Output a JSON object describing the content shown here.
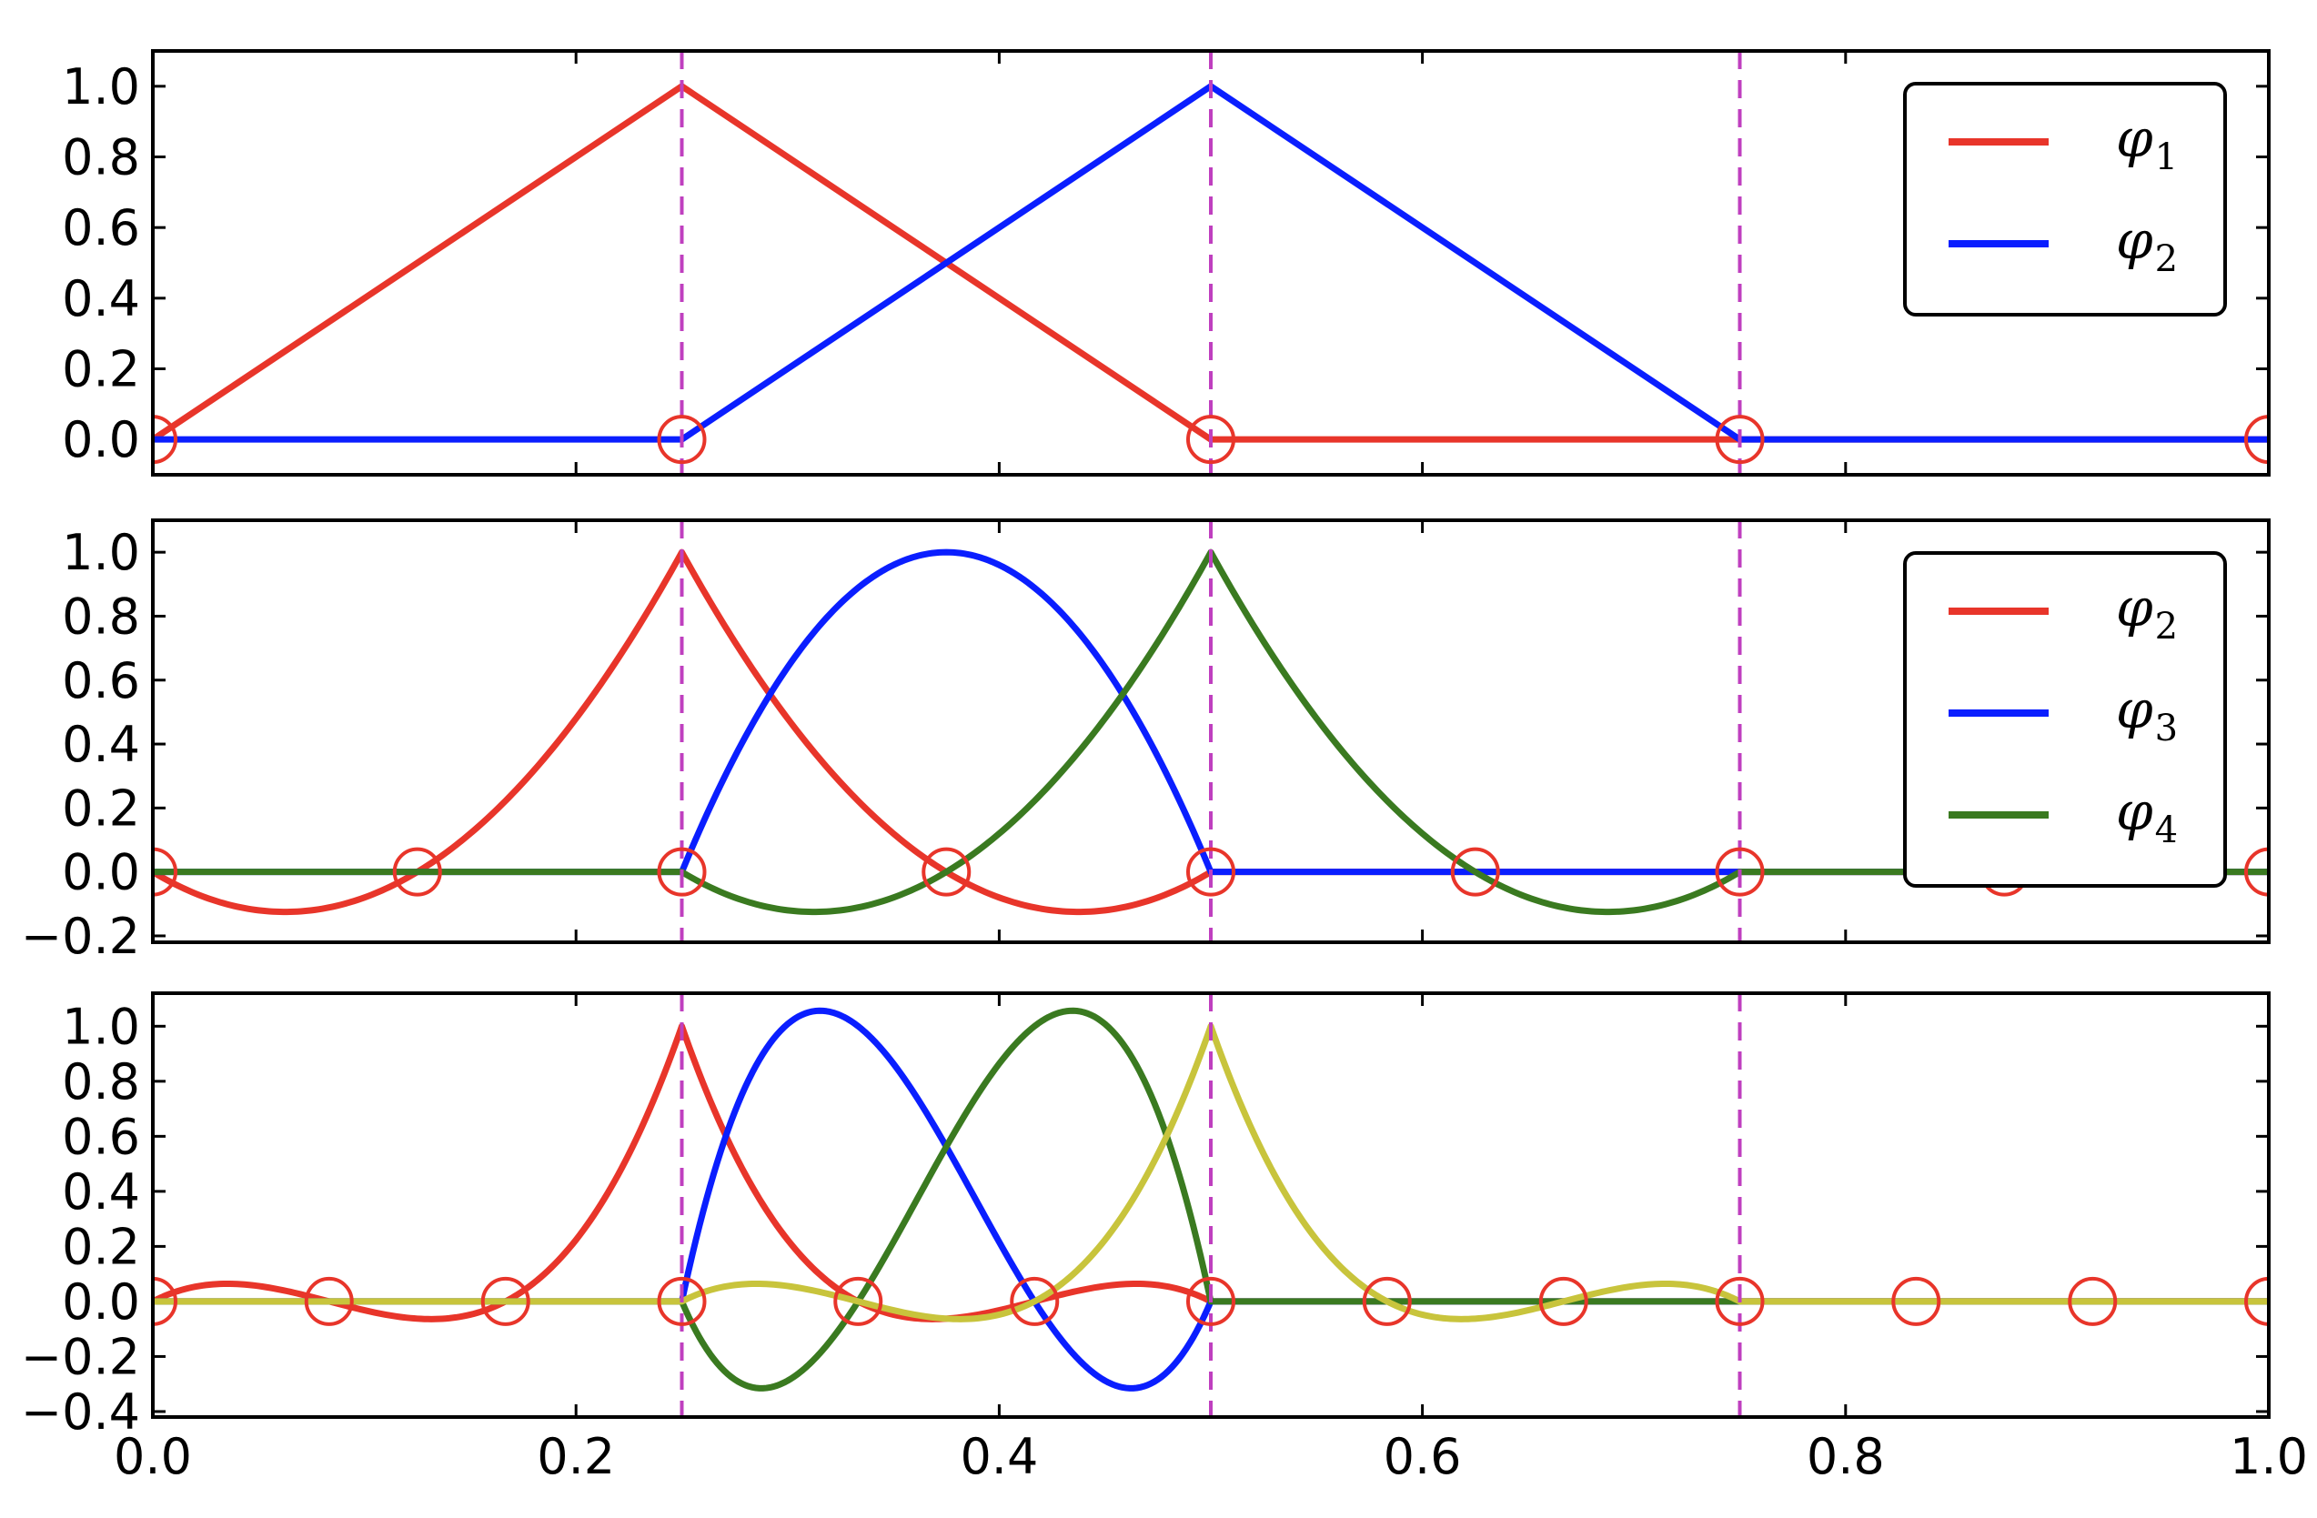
{
  "chart_data": [
    {
      "type": "line",
      "xlim": [
        0,
        1
      ],
      "ylim": [
        -0.1,
        1.1
      ],
      "yticks": [
        "0.0",
        "0.2",
        "0.4",
        "0.6",
        "0.8",
        "1.0"
      ],
      "x_tick_labels_shown": false,
      "grid": false,
      "element_boundaries_dashed": [
        0.25,
        0.5,
        0.75
      ],
      "boundary_color": "#bf3fbf",
      "node_marker_color": "#e8352a",
      "nodes": [
        0,
        0.25,
        0.5,
        0.75,
        1.0
      ],
      "legend": {
        "location": "top-right",
        "entries": [
          {
            "symbol": "φ",
            "subscript": "1",
            "color": "#e8352a"
          },
          {
            "symbol": "φ",
            "subscript": "2",
            "color": "#0a1eff"
          }
        ]
      },
      "series": [
        {
          "color": "#e8352a",
          "x": [
            0,
            0.25,
            0.5,
            1.0
          ],
          "y": [
            0,
            1,
            0,
            0
          ]
        },
        {
          "color": "#0a1eff",
          "x": [
            0,
            0.25,
            0.5,
            0.75,
            1.0
          ],
          "y": [
            0,
            0,
            1,
            0,
            0
          ]
        }
      ]
    },
    {
      "type": "line",
      "xlim": [
        0,
        1
      ],
      "ylim": [
        -0.22,
        1.1
      ],
      "yticks": [
        "−0.2",
        "0.0",
        "0.2",
        "0.4",
        "0.6",
        "0.8",
        "1.0"
      ],
      "x_tick_labels_shown": false,
      "grid": false,
      "element_boundaries_dashed": [
        0.25,
        0.5,
        0.75
      ],
      "nodes": [
        0,
        0.125,
        0.25,
        0.375,
        0.5,
        0.625,
        0.75,
        0.875,
        1.0
      ],
      "legend": {
        "location": "top-right",
        "entries": [
          {
            "symbol": "φ",
            "subscript": "2",
            "color": "#e8352a"
          },
          {
            "symbol": "φ",
            "subscript": "3",
            "color": "#0a1eff"
          },
          {
            "symbol": "φ",
            "subscript": "4",
            "color": "#3a7a20"
          }
        ]
      },
      "series": [
        {
          "color": "#e8352a",
          "basis": "P2 vertex",
          "node_index": 2,
          "element_nodes": 8
        },
        {
          "color": "#0a1eff",
          "basis": "P2 bubble",
          "node_index": 3,
          "element_nodes": 8
        },
        {
          "color": "#3a7a20",
          "basis": "P2 vertex",
          "node_index": 4,
          "element_nodes": 8
        }
      ]
    },
    {
      "type": "line",
      "xlim": [
        0,
        1
      ],
      "ylim": [
        -0.42,
        1.12
      ],
      "yticks": [
        "−0.4",
        "−0.2",
        "0.0",
        "0.2",
        "0.4",
        "0.6",
        "0.8",
        "1.0"
      ],
      "xticks": [
        "0.0",
        "0.2",
        "0.4",
        "0.6",
        "0.8",
        "1.0"
      ],
      "grid": false,
      "element_boundaries_dashed": [
        0.25,
        0.5,
        0.75
      ],
      "nodes": [
        0,
        0.0833,
        0.1667,
        0.25,
        0.3333,
        0.4167,
        0.5,
        0.5833,
        0.6667,
        0.75,
        0.8333,
        0.9167,
        1.0
      ],
      "series": [
        {
          "color": "#e8352a",
          "basis": "P3",
          "node_index": 3,
          "element_nodes": 12
        },
        {
          "color": "#0a1eff",
          "basis": "P3",
          "node_index": 4,
          "element_nodes": 12
        },
        {
          "color": "#3a7a20",
          "basis": "P3",
          "node_index": 5,
          "element_nodes": 12
        },
        {
          "color": "#c8c43c",
          "basis": "P3",
          "node_index": 6,
          "element_nodes": 12
        }
      ]
    }
  ]
}
